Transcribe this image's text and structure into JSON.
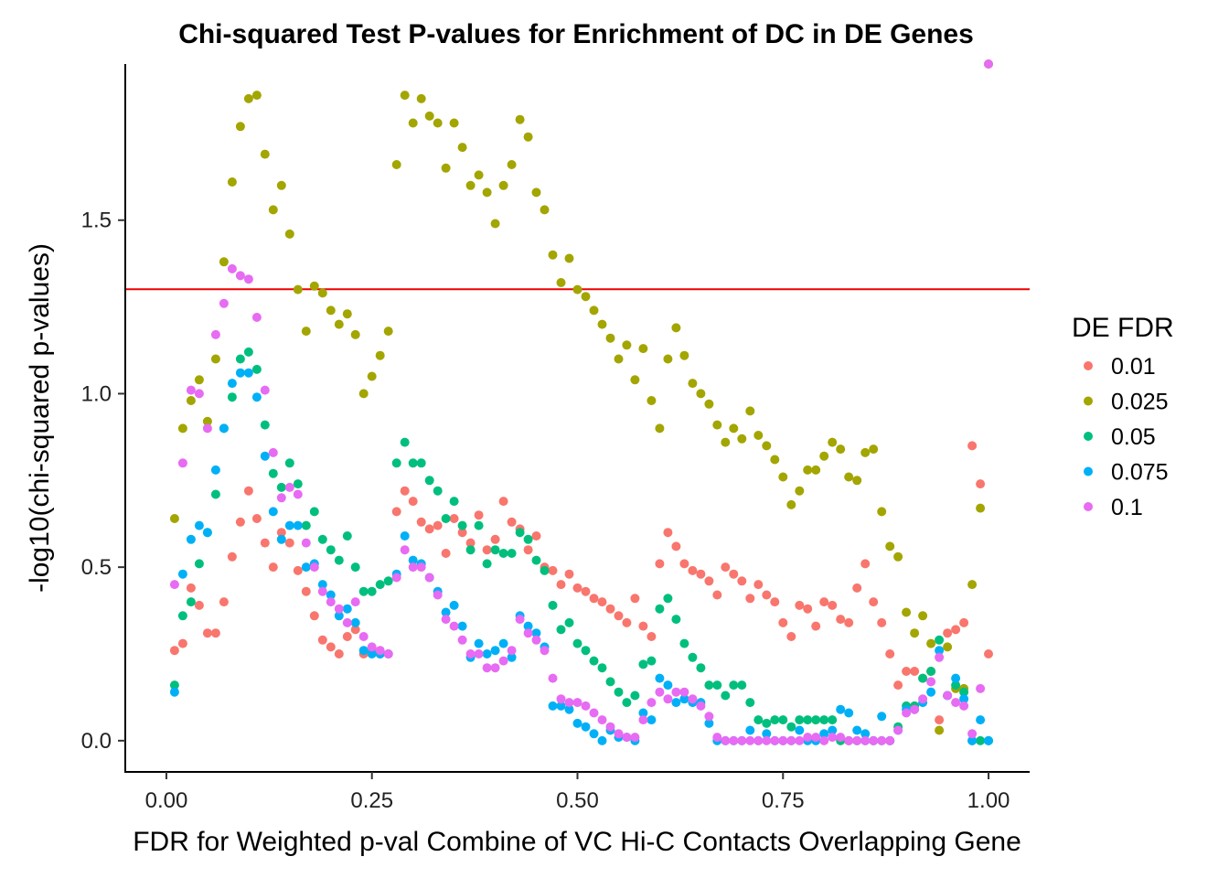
{
  "chart_data": {
    "type": "scatter",
    "title": "Chi-squared Test P-values for Enrichment of DC in DE Genes",
    "xlabel": "FDR for Weighted p-val Combine of VC Hi-C Contacts Overlapping Gene",
    "ylabel": "-log10(chi-squared p-values)",
    "xlim": [
      -0.05,
      1.05
    ],
    "ylim": [
      -0.09,
      1.95
    ],
    "x_ticks": [
      0.0,
      0.25,
      0.5,
      0.75,
      1.0
    ],
    "x_tick_labels": [
      "0.00",
      "0.25",
      "0.50",
      "0.75",
      "1.00"
    ],
    "y_ticks": [
      0.0,
      0.5,
      1.0,
      1.5
    ],
    "y_tick_labels": [
      "0.0",
      "0.5",
      "1.0",
      "1.5"
    ],
    "grid": false,
    "legend": {
      "title": "DE FDR",
      "position": "right"
    },
    "reference_line": {
      "y": 1.301,
      "color": "#ee0000"
    },
    "series": [
      {
        "name": "0.01",
        "color": "#F8766D",
        "x": [
          0.01,
          0.02,
          0.03,
          0.04,
          0.05,
          0.06,
          0.07,
          0.08,
          0.09,
          0.1,
          0.11,
          0.12,
          0.13,
          0.14,
          0.15,
          0.16,
          0.17,
          0.18,
          0.19,
          0.2,
          0.21,
          0.22,
          0.23,
          0.24,
          0.25,
          0.26,
          0.27,
          0.28,
          0.29,
          0.3,
          0.31,
          0.32,
          0.33,
          0.34,
          0.35,
          0.36,
          0.37,
          0.38,
          0.39,
          0.4,
          0.41,
          0.42,
          0.43,
          0.44,
          0.45,
          0.46,
          0.47,
          0.48,
          0.49,
          0.5,
          0.51,
          0.52,
          0.53,
          0.54,
          0.55,
          0.56,
          0.57,
          0.58,
          0.59,
          0.6,
          0.61,
          0.62,
          0.63,
          0.64,
          0.65,
          0.66,
          0.67,
          0.68,
          0.69,
          0.7,
          0.71,
          0.72,
          0.73,
          0.74,
          0.75,
          0.76,
          0.77,
          0.78,
          0.79,
          0.8,
          0.81,
          0.82,
          0.83,
          0.84,
          0.85,
          0.86,
          0.87,
          0.88,
          0.89,
          0.9,
          0.91,
          0.92,
          0.93,
          0.94,
          0.95,
          0.96,
          0.97,
          0.98,
          0.99,
          1.0
        ],
        "y": [
          0.26,
          0.28,
          0.44,
          0.39,
          0.31,
          0.31,
          0.4,
          0.53,
          0.63,
          0.72,
          0.64,
          0.57,
          0.5,
          0.6,
          0.57,
          0.49,
          0.43,
          0.36,
          0.29,
          0.27,
          0.25,
          0.3,
          0.32,
          0.25,
          0.26,
          0.25,
          0.25,
          0.66,
          0.72,
          0.69,
          0.63,
          0.61,
          0.62,
          0.54,
          0.64,
          0.6,
          0.57,
          0.65,
          0.55,
          0.58,
          0.69,
          0.63,
          0.61,
          0.55,
          0.59,
          0.5,
          0.49,
          0.45,
          0.48,
          0.44,
          0.43,
          0.41,
          0.4,
          0.38,
          0.36,
          0.34,
          0.41,
          0.33,
          0.3,
          0.51,
          0.6,
          0.56,
          0.51,
          0.49,
          0.48,
          0.46,
          0.42,
          0.5,
          0.48,
          0.46,
          0.41,
          0.45,
          0.42,
          0.4,
          0.34,
          0.3,
          0.39,
          0.38,
          0.33,
          0.4,
          0.39,
          0.35,
          0.34,
          0.44,
          0.51,
          0.4,
          0.34,
          0.25,
          0.16,
          0.2,
          0.2,
          0.18,
          0.2,
          0.06,
          0.31,
          0.32,
          0.34,
          0.85,
          0.74,
          0.25
        ]
      },
      {
        "name": "0.025",
        "color": "#A3A500",
        "x": [
          0.01,
          0.02,
          0.03,
          0.04,
          0.05,
          0.06,
          0.07,
          0.08,
          0.09,
          0.1,
          0.11,
          0.12,
          0.13,
          0.14,
          0.15,
          0.16,
          0.17,
          0.18,
          0.19,
          0.2,
          0.21,
          0.22,
          0.23,
          0.24,
          0.25,
          0.26,
          0.27,
          0.28,
          0.29,
          0.3,
          0.31,
          0.32,
          0.33,
          0.34,
          0.35,
          0.36,
          0.37,
          0.38,
          0.39,
          0.4,
          0.41,
          0.42,
          0.43,
          0.44,
          0.45,
          0.46,
          0.47,
          0.48,
          0.49,
          0.5,
          0.51,
          0.52,
          0.53,
          0.54,
          0.55,
          0.56,
          0.57,
          0.58,
          0.59,
          0.6,
          0.61,
          0.62,
          0.63,
          0.64,
          0.65,
          0.66,
          0.67,
          0.68,
          0.69,
          0.7,
          0.71,
          0.72,
          0.73,
          0.74,
          0.75,
          0.76,
          0.77,
          0.78,
          0.79,
          0.8,
          0.81,
          0.82,
          0.83,
          0.84,
          0.85,
          0.86,
          0.87,
          0.88,
          0.89,
          0.9,
          0.91,
          0.92,
          0.93,
          0.94,
          0.95,
          0.96,
          0.97,
          0.98,
          0.99,
          1.0
        ],
        "y": [
          0.64,
          0.9,
          0.98,
          1.04,
          0.92,
          1.1,
          1.38,
          1.61,
          1.77,
          1.85,
          1.86,
          1.69,
          1.53,
          1.6,
          1.46,
          1.3,
          1.18,
          1.31,
          1.29,
          1.24,
          1.2,
          1.23,
          1.17,
          1.0,
          1.05,
          1.11,
          1.18,
          1.66,
          1.86,
          1.78,
          1.85,
          1.8,
          1.78,
          1.65,
          1.78,
          1.71,
          1.6,
          1.63,
          1.58,
          1.49,
          1.6,
          1.66,
          1.79,
          1.74,
          1.58,
          1.53,
          1.4,
          1.32,
          1.39,
          1.3,
          1.28,
          1.24,
          1.2,
          1.16,
          1.1,
          1.14,
          1.04,
          1.13,
          0.98,
          0.9,
          1.1,
          1.19,
          1.11,
          1.03,
          1.0,
          0.97,
          0.91,
          0.86,
          0.9,
          0.87,
          0.95,
          0.88,
          0.85,
          0.81,
          0.76,
          0.68,
          0.72,
          0.78,
          0.78,
          0.82,
          0.86,
          0.84,
          0.76,
          0.75,
          0.83,
          0.84,
          0.66,
          0.56,
          0.53,
          0.37,
          0.31,
          0.36,
          0.28,
          0.03,
          0.27,
          0.15,
          0.15,
          0.45,
          0.67,
          1.95
        ]
      },
      {
        "name": "0.05",
        "color": "#00BF7D",
        "x": [
          0.01,
          0.02,
          0.03,
          0.04,
          0.05,
          0.06,
          0.07,
          0.08,
          0.09,
          0.1,
          0.11,
          0.12,
          0.13,
          0.14,
          0.15,
          0.16,
          0.17,
          0.18,
          0.19,
          0.2,
          0.21,
          0.22,
          0.23,
          0.24,
          0.25,
          0.26,
          0.27,
          0.28,
          0.29,
          0.3,
          0.31,
          0.32,
          0.33,
          0.34,
          0.35,
          0.36,
          0.37,
          0.38,
          0.39,
          0.4,
          0.41,
          0.42,
          0.43,
          0.44,
          0.45,
          0.46,
          0.47,
          0.48,
          0.49,
          0.5,
          0.51,
          0.52,
          0.53,
          0.54,
          0.55,
          0.56,
          0.57,
          0.58,
          0.59,
          0.6,
          0.61,
          0.62,
          0.63,
          0.64,
          0.65,
          0.66,
          0.67,
          0.68,
          0.69,
          0.7,
          0.71,
          0.72,
          0.73,
          0.74,
          0.75,
          0.76,
          0.77,
          0.78,
          0.79,
          0.8,
          0.81,
          0.82,
          0.83,
          0.84,
          0.85,
          0.86,
          0.87,
          0.88,
          0.89,
          0.9,
          0.91,
          0.92,
          0.93,
          0.94,
          0.95,
          0.96,
          0.97,
          0.98,
          0.99,
          1.0
        ],
        "y": [
          0.16,
          0.36,
          0.4,
          0.51,
          0.6,
          0.71,
          0.9,
          0.99,
          1.1,
          1.12,
          1.07,
          0.91,
          0.77,
          0.73,
          0.8,
          0.74,
          0.62,
          0.66,
          0.58,
          0.55,
          0.52,
          0.59,
          0.5,
          0.43,
          0.43,
          0.45,
          0.46,
          0.8,
          0.86,
          0.8,
          0.8,
          0.75,
          0.72,
          0.64,
          0.69,
          0.62,
          0.55,
          0.62,
          0.51,
          0.55,
          0.54,
          0.54,
          0.6,
          0.58,
          0.52,
          0.49,
          0.39,
          0.32,
          0.34,
          0.28,
          0.26,
          0.23,
          0.21,
          0.17,
          0.14,
          0.11,
          0.13,
          0.22,
          0.23,
          0.38,
          0.41,
          0.35,
          0.28,
          0.24,
          0.21,
          0.16,
          0.16,
          0.13,
          0.16,
          0.16,
          0.11,
          0.06,
          0.05,
          0.06,
          0.06,
          0.04,
          0.06,
          0.06,
          0.06,
          0.06,
          0.06,
          0.0,
          0.0,
          0.0,
          0.0,
          0.0,
          0.0,
          0.0,
          0.04,
          0.1,
          0.1,
          0.18,
          0.2,
          0.29,
          0.13,
          0.16,
          0.14,
          0.0,
          0.0,
          0.0
        ]
      },
      {
        "name": "0.075",
        "color": "#00B0F6",
        "x": [
          0.01,
          0.02,
          0.03,
          0.04,
          0.05,
          0.06,
          0.07,
          0.08,
          0.09,
          0.1,
          0.11,
          0.12,
          0.13,
          0.14,
          0.15,
          0.16,
          0.17,
          0.18,
          0.19,
          0.2,
          0.21,
          0.22,
          0.23,
          0.24,
          0.25,
          0.26,
          0.27,
          0.28,
          0.29,
          0.3,
          0.31,
          0.32,
          0.33,
          0.34,
          0.35,
          0.36,
          0.37,
          0.38,
          0.39,
          0.4,
          0.41,
          0.42,
          0.43,
          0.44,
          0.45,
          0.46,
          0.47,
          0.48,
          0.49,
          0.5,
          0.51,
          0.52,
          0.53,
          0.54,
          0.55,
          0.56,
          0.57,
          0.58,
          0.59,
          0.6,
          0.61,
          0.62,
          0.63,
          0.64,
          0.65,
          0.66,
          0.67,
          0.68,
          0.69,
          0.7,
          0.71,
          0.72,
          0.73,
          0.74,
          0.75,
          0.76,
          0.77,
          0.78,
          0.79,
          0.8,
          0.81,
          0.82,
          0.83,
          0.84,
          0.85,
          0.86,
          0.87,
          0.88,
          0.89,
          0.9,
          0.91,
          0.92,
          0.93,
          0.94,
          0.95,
          0.96,
          0.97,
          0.98,
          0.99,
          1.0
        ],
        "y": [
          0.14,
          0.48,
          0.58,
          0.62,
          0.6,
          0.78,
          0.9,
          1.03,
          1.06,
          1.06,
          0.99,
          0.82,
          0.66,
          0.58,
          0.62,
          0.62,
          0.5,
          0.51,
          0.45,
          0.42,
          0.36,
          0.38,
          0.34,
          0.26,
          0.25,
          0.25,
          0.25,
          0.48,
          0.59,
          0.52,
          0.51,
          0.47,
          0.43,
          0.37,
          0.39,
          0.33,
          0.24,
          0.28,
          0.25,
          0.26,
          0.28,
          0.24,
          0.36,
          0.33,
          0.31,
          0.27,
          0.1,
          0.1,
          0.09,
          0.05,
          0.04,
          0.02,
          0.0,
          0.03,
          0.01,
          0.01,
          0.0,
          0.08,
          0.06,
          0.18,
          0.16,
          0.11,
          0.12,
          0.11,
          0.11,
          0.05,
          0.0,
          0.0,
          0.0,
          0.0,
          0.03,
          0.0,
          0.02,
          0.0,
          0.0,
          0.0,
          0.03,
          0.0,
          0.0,
          0.02,
          0.03,
          0.09,
          0.08,
          0.03,
          0.02,
          0.0,
          0.07,
          0.0,
          0.03,
          0.09,
          0.09,
          0.11,
          0.14,
          0.26,
          0.13,
          0.18,
          0.12,
          0.0,
          0.06,
          0.0
        ]
      },
      {
        "name": "0.1",
        "color": "#E76BF3",
        "x": [
          0.01,
          0.02,
          0.03,
          0.04,
          0.05,
          0.06,
          0.07,
          0.08,
          0.09,
          0.1,
          0.11,
          0.12,
          0.13,
          0.14,
          0.15,
          0.16,
          0.17,
          0.18,
          0.19,
          0.2,
          0.21,
          0.22,
          0.23,
          0.24,
          0.25,
          0.26,
          0.27,
          0.28,
          0.29,
          0.3,
          0.31,
          0.32,
          0.33,
          0.34,
          0.35,
          0.36,
          0.37,
          0.38,
          0.39,
          0.4,
          0.41,
          0.42,
          0.43,
          0.44,
          0.45,
          0.46,
          0.47,
          0.48,
          0.49,
          0.5,
          0.51,
          0.52,
          0.53,
          0.54,
          0.55,
          0.56,
          0.57,
          0.58,
          0.59,
          0.6,
          0.61,
          0.62,
          0.63,
          0.64,
          0.65,
          0.66,
          0.67,
          0.68,
          0.69,
          0.7,
          0.71,
          0.72,
          0.73,
          0.74,
          0.75,
          0.76,
          0.77,
          0.78,
          0.79,
          0.8,
          0.81,
          0.82,
          0.83,
          0.84,
          0.85,
          0.86,
          0.87,
          0.88,
          0.89,
          0.9,
          0.91,
          0.92,
          0.93,
          0.94,
          0.95,
          0.96,
          0.97,
          0.98,
          0.99,
          1.0
        ],
        "y": [
          0.45,
          0.8,
          1.01,
          1.0,
          0.9,
          1.17,
          1.26,
          1.36,
          1.34,
          1.33,
          1.22,
          1.01,
          0.83,
          0.7,
          0.73,
          0.71,
          0.57,
          0.5,
          0.43,
          0.4,
          0.38,
          0.34,
          0.4,
          0.3,
          0.27,
          0.26,
          0.25,
          0.47,
          0.55,
          0.5,
          0.5,
          0.47,
          0.42,
          0.35,
          0.33,
          0.29,
          0.25,
          0.25,
          0.21,
          0.21,
          0.23,
          0.26,
          0.35,
          0.31,
          0.29,
          0.26,
          0.18,
          0.12,
          0.11,
          0.11,
          0.1,
          0.08,
          0.06,
          0.04,
          0.02,
          0.01,
          0.01,
          0.06,
          0.11,
          0.14,
          0.12,
          0.14,
          0.14,
          0.12,
          0.1,
          0.07,
          0.01,
          0.0,
          0.0,
          0.0,
          0.0,
          0.0,
          0.0,
          0.0,
          0.0,
          0.0,
          0.0,
          0.01,
          0.01,
          0.0,
          0.01,
          0.01,
          0.0,
          0.0,
          0.0,
          0.0,
          0.0,
          0.0,
          0.03,
          0.08,
          0.09,
          0.12,
          0.17,
          0.24,
          0.13,
          0.11,
          0.1,
          0.02,
          0.15,
          1.95
        ]
      }
    ]
  }
}
